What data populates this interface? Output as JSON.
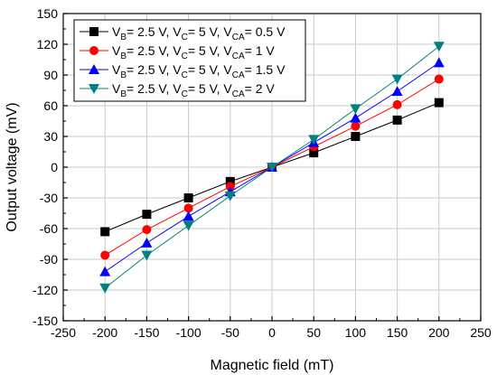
{
  "chart_data": {
    "type": "line",
    "xlabel": "Magnetic field (mT)",
    "ylabel": "Output voltage (mV)",
    "xlim": [
      -250,
      250
    ],
    "ylim": [
      -150,
      150
    ],
    "xticks": [
      -250,
      -200,
      -150,
      -100,
      -50,
      0,
      50,
      100,
      150,
      200,
      250
    ],
    "yticks": [
      -150,
      -120,
      -90,
      -60,
      -30,
      0,
      30,
      60,
      90,
      120,
      150
    ],
    "grid": true,
    "legend_position": "top-left",
    "x": [
      -200,
      -150,
      -100,
      -50,
      0,
      50,
      100,
      150,
      200
    ],
    "series": [
      {
        "name": "V_B= 2.5 V, V_C= 5 V, V_CA= 0.5 V",
        "legend_parts": [
          "V",
          "B",
          "= 2.5 V, V",
          "C",
          "= 5 V, V",
          "CA",
          "= 0.5 V"
        ],
        "color": "#000000",
        "marker": "square",
        "values": [
          -63,
          -46,
          -30,
          -14,
          0,
          14,
          30,
          46,
          63
        ]
      },
      {
        "name": "V_B= 2.5 V, V_C= 5 V, V_CA= 1 V",
        "legend_parts": [
          "V",
          "B",
          "= 2.5 V, V",
          "C",
          "= 5 V, V",
          "CA",
          "= 1 V"
        ],
        "color": "#ff0000",
        "marker": "circle",
        "values": [
          -86,
          -61,
          -40,
          -19,
          0,
          20,
          40,
          61,
          86
        ]
      },
      {
        "name": "V_B= 2.5 V, V_C= 5 V, V_CA= 1.5 V",
        "legend_parts": [
          "V",
          "B",
          "= 2.5 V, V",
          "C",
          "= 5 V, V",
          "CA",
          "= 1.5 V"
        ],
        "color": "#0000ff",
        "marker": "triangle-up",
        "values": [
          -102,
          -74,
          -48,
          -24,
          0,
          24,
          48,
          74,
          102
        ]
      },
      {
        "name": "V_B= 2.5 V, V_C= 5 V, V_CA= 2 V",
        "legend_parts": [
          "V",
          "B",
          "= 2.5 V, V",
          "C",
          "= 5 V, V",
          "CA",
          "= 2 V"
        ],
        "color": "#008080",
        "marker": "triangle-down",
        "values": [
          -118,
          -86,
          -57,
          -28,
          0,
          27,
          57,
          86,
          118
        ]
      }
    ]
  }
}
